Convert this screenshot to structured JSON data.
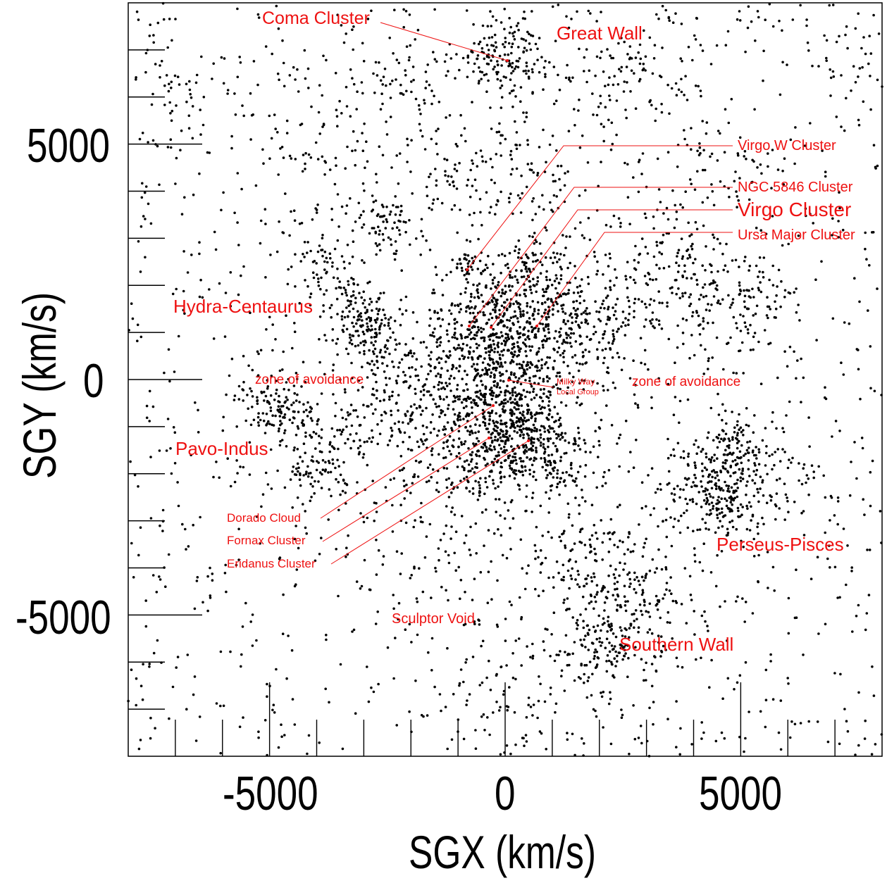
{
  "chart_data": {
    "type": "scatter",
    "xlabel": "SGX (km/s)",
    "ylabel": "SGY (km/s)",
    "xlim": [
      -8000,
      8000
    ],
    "ylim": [
      -8000,
      8000
    ],
    "x_tick_labels": [
      "-5000",
      "0",
      "5000"
    ],
    "y_tick_labels": [
      "5000",
      "0",
      "-5000"
    ],
    "grid": false,
    "legend": "none",
    "point_color": "#000000",
    "label_color": "#ee1111",
    "annotations": [
      {
        "text": "Coma Cluster",
        "x": 0,
        "y": 7000
      },
      {
        "text": "Great Wall"
      },
      {
        "text": "Virgo W Cluster",
        "x": -800,
        "y": 2300
      },
      {
        "text": "NGC 5846 Cluster",
        "x": -700,
        "y": 1200
      },
      {
        "text": "Virgo Cluster",
        "x": -300,
        "y": 1150
      },
      {
        "text": "Ursa Major Cluster",
        "x": 700,
        "y": 1200
      },
      {
        "text": "Hydra-Centaurus"
      },
      {
        "text": "zone of avoidance"
      },
      {
        "text": "zone of avoidance"
      },
      {
        "text": "Milky Way",
        "x": 0,
        "y": 0
      },
      {
        "text": "Local Group",
        "x": 0,
        "y": 0
      },
      {
        "text": "Pavo-Indus"
      },
      {
        "text": "Dorado Cloud",
        "x": -300,
        "y": -550
      },
      {
        "text": "Fornax Cluster",
        "x": -400,
        "y": -1250
      },
      {
        "text": "Eridanus Cluster",
        "x": 500,
        "y": -1300
      },
      {
        "text": "Perseus-Pisces"
      },
      {
        "text": "Sculptor Void"
      },
      {
        "text": "Southern Wall"
      }
    ],
    "clusters": [
      {
        "x": 0,
        "y": 6900,
        "n": 140,
        "s": 450
      },
      {
        "x": -2200,
        "y": 6500,
        "n": 60,
        "s": 500
      },
      {
        "x": -2500,
        "y": 3300,
        "n": 60,
        "s": 300
      },
      {
        "x": -4000,
        "y": 2400,
        "n": 40,
        "s": 250
      },
      {
        "x": -3000,
        "y": 1300,
        "n": 90,
        "s": 300
      },
      {
        "x": -2700,
        "y": 700,
        "n": 50,
        "s": 250
      },
      {
        "x": -3500,
        "y": 1800,
        "n": 40,
        "s": 350
      },
      {
        "x": -800,
        "y": 2400,
        "n": 40,
        "s": 200
      },
      {
        "x": -200,
        "y": 1100,
        "n": 340,
        "s": 650
      },
      {
        "x": 1000,
        "y": 1300,
        "n": 220,
        "s": 800
      },
      {
        "x": 500,
        "y": 2300,
        "n": 70,
        "s": 400
      },
      {
        "x": 2000,
        "y": 1200,
        "n": 90,
        "s": 550
      },
      {
        "x": -400,
        "y": 200,
        "n": 300,
        "s": 800
      },
      {
        "x": 0,
        "y": -900,
        "n": 220,
        "s": 650
      },
      {
        "x": 500,
        "y": -1200,
        "n": 220,
        "s": 600
      },
      {
        "x": -300,
        "y": -1500,
        "n": 120,
        "s": 600
      },
      {
        "x": 1300,
        "y": -1800,
        "n": 70,
        "s": 400
      },
      {
        "x": -1500,
        "y": -600,
        "n": 120,
        "s": 800
      },
      {
        "x": -2500,
        "y": -500,
        "n": 90,
        "s": 700
      },
      {
        "x": -4800,
        "y": -700,
        "n": 110,
        "s": 380
      },
      {
        "x": -4000,
        "y": -1900,
        "n": 80,
        "s": 400
      },
      {
        "x": -3500,
        "y": -1000,
        "n": 50,
        "s": 500
      },
      {
        "x": 4600,
        "y": -2400,
        "n": 220,
        "s": 500
      },
      {
        "x": 5000,
        "y": -1400,
        "n": 90,
        "s": 350
      },
      {
        "x": 6000,
        "y": -1800,
        "n": 50,
        "s": 600
      },
      {
        "x": 2500,
        "y": -4800,
        "n": 160,
        "s": 600
      },
      {
        "x": 2000,
        "y": -5700,
        "n": 120,
        "s": 500
      },
      {
        "x": 1200,
        "y": -3800,
        "n": 60,
        "s": 500
      },
      {
        "x": 3600,
        "y": 2100,
        "n": 120,
        "s": 700
      },
      {
        "x": 5000,
        "y": 1500,
        "n": 90,
        "s": 600
      },
      {
        "x": 4500,
        "y": 4500,
        "n": 40,
        "s": 500
      },
      {
        "x": 2000,
        "y": 6600,
        "n": 50,
        "s": 700
      },
      {
        "x": 3500,
        "y": 6600,
        "n": 50,
        "s": 600
      },
      {
        "x": -1000,
        "y": 4000,
        "n": 60,
        "s": 700
      },
      {
        "x": -3500,
        "y": 4800,
        "n": 70,
        "s": 900
      },
      {
        "x": 500,
        "y": 4500,
        "n": 60,
        "s": 600
      },
      {
        "x": 2700,
        "y": 3000,
        "n": 50,
        "s": 700
      },
      {
        "x": 3000,
        "y": -3300,
        "n": 60,
        "s": 700
      },
      {
        "x": -1300,
        "y": -2700,
        "n": 80,
        "s": 800
      },
      {
        "x": 0,
        "y": -6800,
        "n": 60,
        "s": 700
      },
      {
        "x": -7000,
        "y": 6200,
        "n": 40,
        "s": 600
      },
      {
        "x": 7500,
        "y": 6700,
        "n": 20,
        "s": 400
      }
    ],
    "background_points": 1500,
    "seed": 20241
  }
}
